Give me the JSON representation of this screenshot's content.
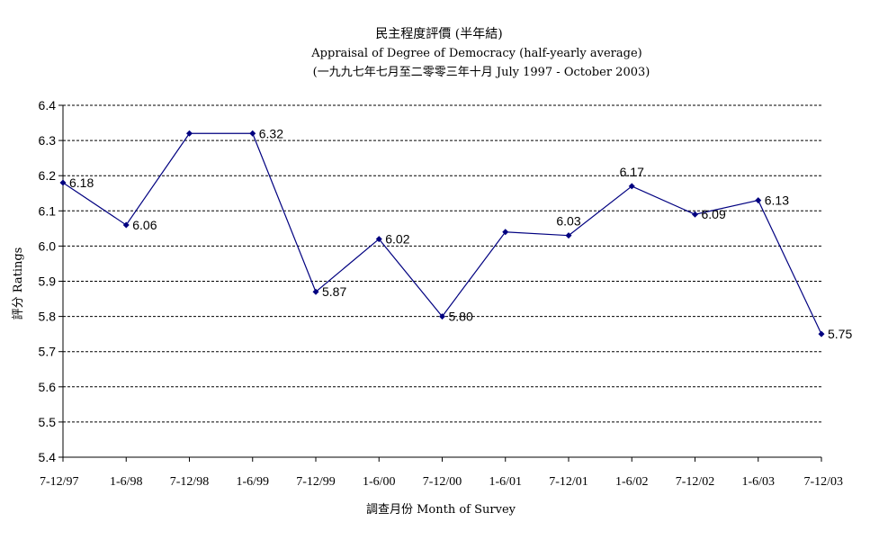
{
  "chart_data": {
    "type": "line",
    "title": "民主程度評價 (半年結)",
    "subtitle": "Appraisal of Degree of Democracy (half-yearly average)",
    "subtitle2": "(一九九七年七月至二零零三年十月 July 1997 - October 2003)",
    "xlabel": "調查月份 Month of Survey",
    "ylabel": "評分 Ratings",
    "categories": [
      "7-12/97",
      "1-6/98",
      "7-12/98",
      "1-6/99",
      "7-12/99",
      "1-6/00",
      "7-12/00",
      "1-6/01",
      "7-12/01",
      "1-6/02",
      "7-12/02",
      "1-6/03",
      "7-12/03"
    ],
    "values": [
      6.18,
      6.06,
      6.32,
      6.32,
      5.87,
      6.02,
      5.8,
      6.04,
      6.03,
      6.17,
      6.09,
      6.13,
      5.75
    ],
    "data_labels": [
      "6.18",
      "6.06",
      "",
      "6.32",
      "5.87",
      "6.02",
      "5.80",
      "",
      "6.03",
      "6.17",
      "6.09",
      "6.13",
      "5.75"
    ],
    "ylim": [
      5.4,
      6.4
    ],
    "yticks": [
      "5.4",
      "5.5",
      "5.6",
      "5.7",
      "5.8",
      "5.9",
      "6.0",
      "6.1",
      "6.2",
      "6.3",
      "6.4"
    ],
    "grid": true,
    "line_color": "#000080"
  }
}
